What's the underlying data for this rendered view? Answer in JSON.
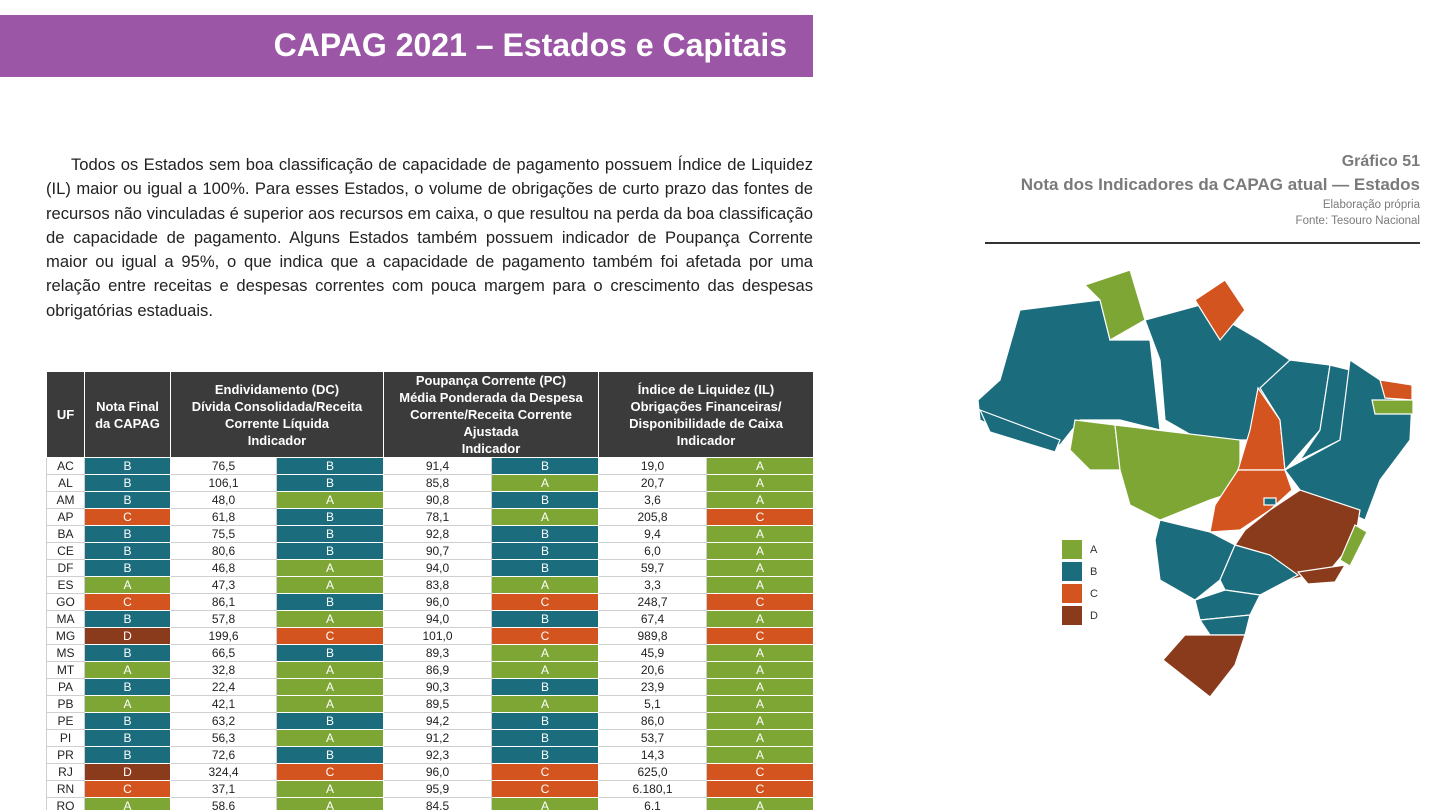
{
  "header": {
    "title": "CAPAG 2021 – Estados e Capitais"
  },
  "paragraph": "Todos os Estados sem boa classificação de capacidade de pagamento possuem Índice de Liquidez (IL) maior ou igual a 100%. Para esses Estados, o volume de obrigações de curto prazo das fontes de recursos não vinculadas é superior aos recursos em caixa, o que resultou na perda da boa classificação de capacidade de pagamento. Alguns Estados também possuem indicador de Poupança Corrente maior ou igual a 95%, o que indica que a capacidade de pagamento também foi afetada por uma relação entre receitas e despesas correntes com pouca margem para o crescimento das despesas obrigatórias estaduais.",
  "chart": {
    "label": "Gráfico 51",
    "title": "Nota dos Indicadores da CAPAG atual — Estados",
    "note": "Elaboração própria",
    "source": "Fonte: Tesouro Nacional",
    "legend": [
      {
        "label": "A",
        "color": "#7ea634"
      },
      {
        "label": "B",
        "color": "#1b6c7c"
      },
      {
        "label": "C",
        "color": "#d4541f"
      },
      {
        "label": "D",
        "color": "#8a3b1b"
      }
    ]
  },
  "table": {
    "columns": [
      [
        "UF"
      ],
      [
        "Nota Final",
        "da CAPAG"
      ],
      [
        "Endividamento (DC)",
        "Dívida Consolidada/Receita",
        "Corrente Líquida",
        "Indicador"
      ],
      [
        "Poupança Corrente (PC)",
        "Média Ponderada da Despesa",
        "Corrente/Receita Corrente",
        "Ajustada",
        "Indicador"
      ],
      [
        "Índice de Liquidez (IL)",
        "Obrigações Financeiras/",
        "Disponibilidade de Caixa",
        "Indicador"
      ]
    ],
    "rows": [
      [
        "AC",
        "B",
        "76,5",
        "B",
        "91,4",
        "B",
        "19,0",
        "A"
      ],
      [
        "AL",
        "B",
        "106,1",
        "B",
        "85,8",
        "A",
        "20,7",
        "A"
      ],
      [
        "AM",
        "B",
        "48,0",
        "A",
        "90,8",
        "B",
        "3,6",
        "A"
      ],
      [
        "AP",
        "C",
        "61,8",
        "B",
        "78,1",
        "A",
        "205,8",
        "C"
      ],
      [
        "BA",
        "B",
        "75,5",
        "B",
        "92,8",
        "B",
        "9,4",
        "A"
      ],
      [
        "CE",
        "B",
        "80,6",
        "B",
        "90,7",
        "B",
        "6,0",
        "A"
      ],
      [
        "DF",
        "B",
        "46,8",
        "A",
        "94,0",
        "B",
        "59,7",
        "A"
      ],
      [
        "ES",
        "A",
        "47,3",
        "A",
        "83,8",
        "A",
        "3,3",
        "A"
      ],
      [
        "GO",
        "C",
        "86,1",
        "B",
        "96,0",
        "C",
        "248,7",
        "C"
      ],
      [
        "MA",
        "B",
        "57,8",
        "A",
        "94,0",
        "B",
        "67,4",
        "A"
      ],
      [
        "MG",
        "D",
        "199,6",
        "C",
        "101,0",
        "C",
        "989,8",
        "C"
      ],
      [
        "MS",
        "B",
        "66,5",
        "B",
        "89,3",
        "A",
        "45,9",
        "A"
      ],
      [
        "MT",
        "A",
        "32,8",
        "A",
        "86,9",
        "A",
        "20,6",
        "A"
      ],
      [
        "PA",
        "B",
        "22,4",
        "A",
        "90,3",
        "B",
        "23,9",
        "A"
      ],
      [
        "PB",
        "A",
        "42,1",
        "A",
        "89,5",
        "A",
        "5,1",
        "A"
      ],
      [
        "PE",
        "B",
        "63,2",
        "B",
        "94,2",
        "B",
        "86,0",
        "A"
      ],
      [
        "PI",
        "B",
        "56,3",
        "A",
        "91,2",
        "B",
        "53,7",
        "A"
      ],
      [
        "PR",
        "B",
        "72,6",
        "B",
        "92,3",
        "B",
        "14,3",
        "A"
      ],
      [
        "RJ",
        "D",
        "324,4",
        "C",
        "96,0",
        "C",
        "625,0",
        "C"
      ],
      [
        "RN",
        "C",
        "37,1",
        "A",
        "95,9",
        "C",
        "6.180,1",
        "C"
      ],
      [
        "RO",
        "A",
        "58,6",
        "A",
        "84,5",
        "A",
        "6,1",
        "A"
      ]
    ]
  }
}
